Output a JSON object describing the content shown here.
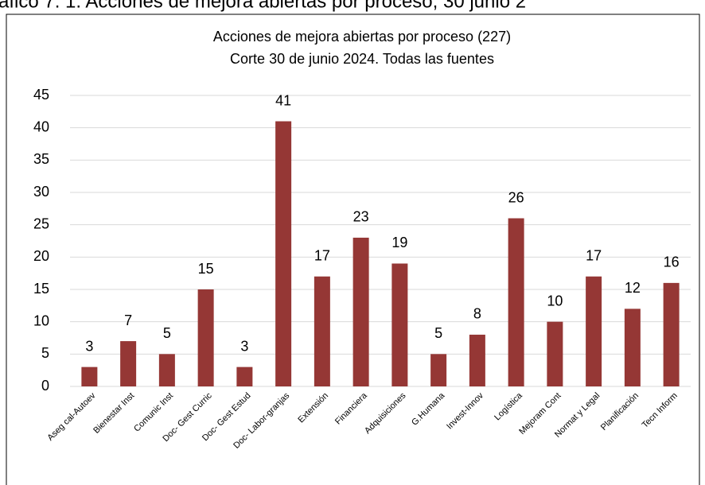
{
  "page_heading": "áfico 7. 1. Acciones de mejora abiertas por proceso, 30 junio 2",
  "chart_data": {
    "type": "bar",
    "title": "Acciones de mejora abiertas por proceso (227)",
    "subtitle": "Corte 30 de junio 2024. Todas las fuentes",
    "categories": [
      "Aseg cal-Autoev",
      "Bienestar Inst",
      "Comunic Inst",
      "Doc- Gest Curric",
      "Doc- Gest Estud",
      "Doc- Labor-granjas",
      "Extensión",
      "Financiera",
      "Adquisiciones",
      "G.Humana",
      "Invest-Innov",
      "Logística",
      "Mejoram Cont",
      "Normat y Legal",
      "Planificación",
      "Tecn Inform"
    ],
    "values": [
      3,
      7,
      5,
      15,
      3,
      41,
      17,
      23,
      19,
      5,
      8,
      26,
      10,
      17,
      12,
      16
    ],
    "color": "#953735",
    "ylim": [
      0,
      45
    ],
    "yticks": [
      0,
      5,
      10,
      15,
      20,
      25,
      30,
      35,
      40,
      45
    ],
    "grid": true
  }
}
